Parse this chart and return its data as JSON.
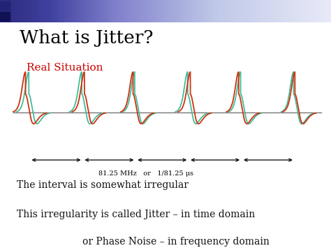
{
  "title": "What is Jitter?",
  "subtitle": "Real Situation",
  "subtitle_color": "#CC0000",
  "title_color": "#000000",
  "background_color": "#ffffff",
  "freq_label": "81.25 MHz   or   1/81.25 μs",
  "line1": "The interval is somewhat irregular",
  "line2": "This irregularity is called Jitter – in time domain",
  "line3": "or Phase Noise – in frequency domain",
  "pulse_centers": [
    0.09,
    0.25,
    0.41,
    0.57,
    0.73,
    0.89
  ],
  "jitter_offsets": [
    -0.01,
    0.008,
    -0.005,
    0.008,
    -0.006,
    0.004
  ],
  "green_color": "#44BB99",
  "red_color": "#CC3311",
  "axis_color": "#777777",
  "text_color": "#111111",
  "header_gradient_colors": [
    "#2a2a7c",
    "#4040a0",
    "#8080cc",
    "#c0c8e8",
    "#e8eaf8"
  ],
  "header_gradient_stops": [
    0.0,
    0.15,
    0.35,
    0.65,
    1.0
  ]
}
